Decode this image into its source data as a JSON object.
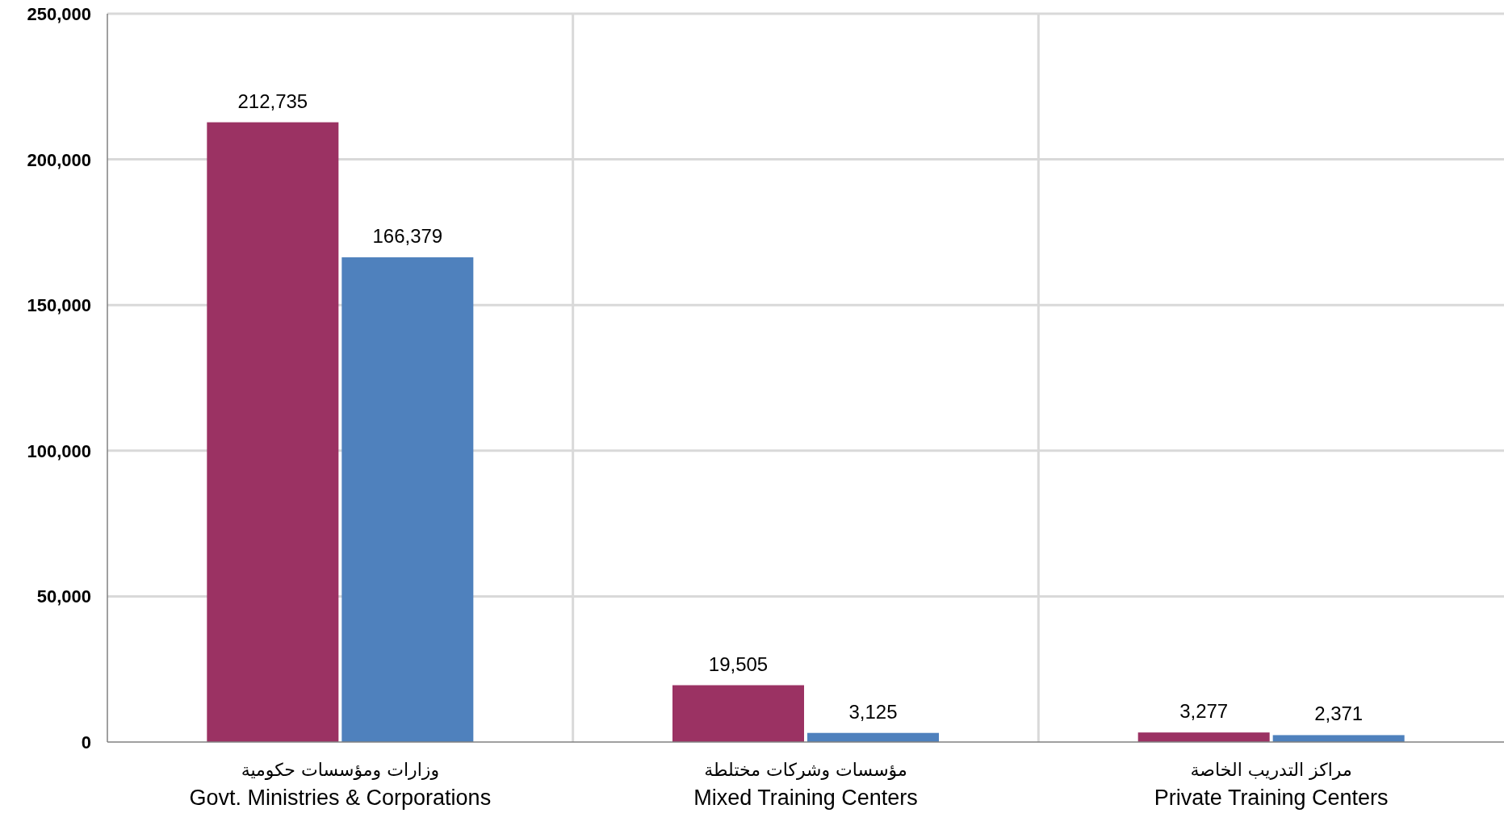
{
  "chart_data": {
    "type": "bar",
    "categories": [
      "Govt. Ministries & Corporations",
      "Mixed Training Centers",
      "Private Training Centers"
    ],
    "annotations": [
      "وزارات ومؤسسات حكومية",
      "مؤسسات وشركات مختلطة",
      "مراكز التدريب الخاصة"
    ],
    "series": [
      {
        "color": "#9b3263",
        "values": [
          212735,
          19505,
          3277
        ],
        "value_labels": [
          "212,735",
          "19,505",
          "3,277"
        ]
      },
      {
        "color": "#4f81bd",
        "values": [
          166379,
          3125,
          2371
        ],
        "value_labels": [
          "166,379",
          "3,125",
          "2,371"
        ]
      }
    ],
    "ylim": [
      0,
      250000
    ],
    "yticks": [
      {
        "value": 0,
        "label": "0"
      },
      {
        "value": 50000,
        "label": "50,000"
      },
      {
        "value": 100000,
        "label": "100,000"
      },
      {
        "value": 150000,
        "label": "150,000"
      },
      {
        "value": 200000,
        "label": "200,000"
      },
      {
        "value": 250000,
        "label": "250,000"
      }
    ],
    "grid": true
  }
}
